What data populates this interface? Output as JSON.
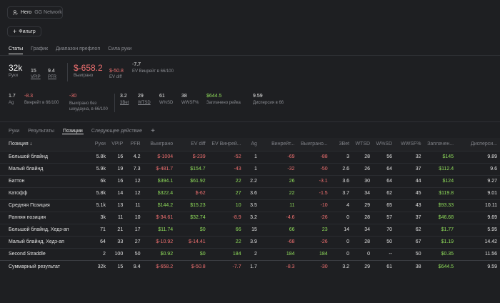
{
  "header": {
    "user": "Hero",
    "network": "GG Network",
    "filter_label": "Фильтр"
  },
  "tabs": [
    "Статы",
    "График",
    "Диапазон префлоп",
    "Сила руки"
  ],
  "stats1": {
    "hands": {
      "value": "32k",
      "label": "Руки"
    },
    "vpip": {
      "value": "15",
      "label": "VPIP"
    },
    "pfr": {
      "value": "9.4",
      "label": "PFR"
    },
    "won": {
      "value": "$-658.2",
      "label": "Выиграно"
    },
    "ev_diff": {
      "value": "$-50.8",
      "label": "EV diff"
    },
    "ev_win": {
      "value": "-7.7",
      "label": "EV Винрейт в 66/100"
    }
  },
  "stats2": {
    "ag": {
      "value": "1.7",
      "label": "Ag"
    },
    "winrate": {
      "value": "-8.3",
      "label": "Винрейт в 66/100"
    },
    "won_noshow": {
      "value": "-30",
      "label": "Выиграно без шоудауна, в 66/100"
    },
    "threebet": {
      "value": "3.2",
      "label": "3Bet"
    },
    "wtsd": {
      "value": "29",
      "label": "WTSD"
    },
    "wsd": {
      "value": "61",
      "label": "W%SD"
    },
    "wwsf": {
      "value": "38",
      "label": "WWSF%"
    },
    "rake": {
      "value": "$644.5",
      "label": "Заплачено рейка"
    },
    "variance": {
      "value": "9.59",
      "label": "Дисперсия в 66"
    }
  },
  "bottom_tabs": [
    "Руки",
    "Результаты",
    "Позиции",
    "Следующее действие"
  ],
  "add_tab_icon": "+",
  "table": {
    "headers": [
      "Позиция ↓",
      "Руки",
      "VPIP",
      "PFR",
      "Выиграно",
      "EV diff",
      "EV Винрей...",
      "Ag",
      "Винрейт...",
      "Выиграно...",
      "3Bet",
      "WTSD",
      "W%SD",
      "WWSF%",
      "Заплачен...",
      "Дисперси..."
    ],
    "rows": [
      [
        "Большой блайнд",
        "5.8k",
        "16",
        "4.2",
        "$-1004",
        "$-239",
        "-52",
        "1",
        "-69",
        "-88",
        "3",
        "28",
        "56",
        "32",
        "$145",
        "9.89"
      ],
      [
        "Малый блайнд",
        "5.9k",
        "19",
        "7.3",
        "$-481.7",
        "$154.7",
        "-43",
        "1",
        "-32",
        "-50",
        "2.6",
        "26",
        "64",
        "37",
        "$112.4",
        "9.6"
      ],
      [
        "Баттон",
        "6k",
        "16",
        "12",
        "$394.1",
        "$61.92",
        "22",
        "2.2",
        "26",
        "-3.1",
        "3.6",
        "30",
        "64",
        "44",
        "$124",
        "9.27"
      ],
      [
        "Катофф",
        "5.8k",
        "14",
        "12",
        "$322.4",
        "$-62",
        "27",
        "3.6",
        "22",
        "-1.5",
        "3.7",
        "34",
        "62",
        "45",
        "$119.8",
        "9.01"
      ],
      [
        "Средняя Позиция",
        "5.1k",
        "13",
        "11",
        "$144.2",
        "$15.23",
        "10",
        "3.5",
        "11",
        "-10",
        "4",
        "29",
        "65",
        "43",
        "$93.33",
        "10.11"
      ],
      [
        "Ранняя позиция",
        "3k",
        "11",
        "10",
        "$-34.61",
        "$32.74",
        "-8.9",
        "3.2",
        "-4.6",
        "-26",
        "0",
        "28",
        "57",
        "37",
        "$46.68",
        "9.69"
      ],
      [
        "Большой блайнд, Хедз-ап",
        "71",
        "21",
        "17",
        "$11.74",
        "$0",
        "66",
        "15",
        "66",
        "23",
        "14",
        "34",
        "70",
        "62",
        "$1.77",
        "5.95"
      ],
      [
        "Малый блайнд, Хедз-ап",
        "64",
        "33",
        "27",
        "$-10.92",
        "$-14.41",
        "22",
        "3.9",
        "-68",
        "-26",
        "0",
        "28",
        "50",
        "67",
        "$1.19",
        "14.42"
      ],
      [
        "Second Straddle",
        "2",
        "100",
        "50",
        "$0.92",
        "$0",
        "184",
        "2",
        "184",
        "184",
        "0",
        "0",
        "--",
        "50",
        "$0.35",
        "11.56"
      ]
    ],
    "total": [
      "Суммарный результат",
      "32k",
      "15",
      "9.4",
      "$-658.2",
      "$-50.8",
      "-7.7",
      "1.7",
      "-8.3",
      "-30",
      "3.2",
      "29",
      "61",
      "38",
      "$644.5",
      "9.59"
    ]
  }
}
